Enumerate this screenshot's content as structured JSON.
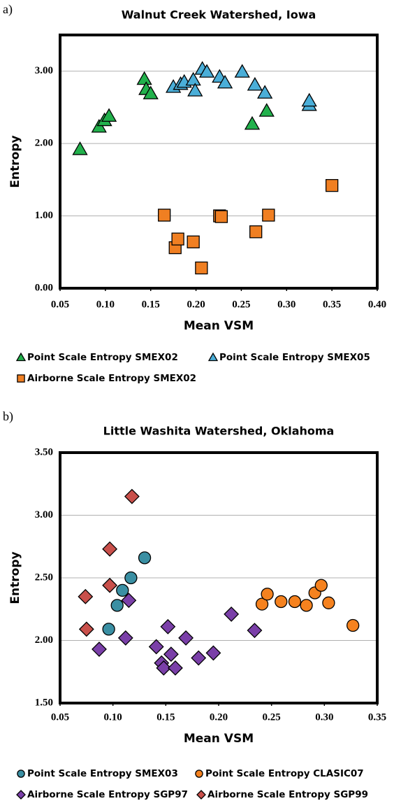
{
  "chart_data": [
    {
      "type": "scatter",
      "panel_label": "a)",
      "title": "Walnut Creek Watershed, Iowa",
      "x_label": "Mean VSM",
      "y_label": "Entropy",
      "xlim": [
        0.05,
        0.4
      ],
      "ylim": [
        0,
        3.5
      ],
      "xticks": [
        0.05,
        {
          "value": 0.1,
          "label": "0.10"
        },
        0.15,
        {
          "value": 0.2,
          "label": "0.20"
        },
        0.25,
        {
          "value": 0.3,
          "label": "0.30"
        },
        0.35,
        {
          "value": 0.4,
          "label": "0.40"
        }
      ],
      "yticks": [
        {
          "value": 0,
          "label": "0.00"
        },
        {
          "value": 1,
          "label": "1.00"
        },
        {
          "value": 2,
          "label": "2.00"
        },
        {
          "value": 3,
          "label": "3.00"
        }
      ],
      "grid": true,
      "series": [
        {
          "name": "Point Scale Entropy SMEX02",
          "color": "#22b14c",
          "marker": "triangle",
          "x": [
            0.072,
            0.093,
            0.099,
            0.104,
            0.143,
            0.145,
            0.15,
            0.262,
            0.278
          ],
          "values": [
            1.92,
            2.23,
            2.32,
            2.38,
            2.89,
            2.75,
            2.69,
            2.27,
            2.45
          ]
        },
        {
          "name": "Point Scale Entropy SMEX05",
          "color": "#4aaed8",
          "marker": "triangle",
          "x": [
            0.175,
            0.183,
            0.187,
            0.197,
            0.199,
            0.207,
            0.212,
            0.226,
            0.232,
            0.251,
            0.265,
            0.276,
            0.325,
            0.325
          ],
          "values": [
            2.78,
            2.82,
            2.85,
            2.88,
            2.73,
            3.03,
            2.99,
            2.92,
            2.84,
            2.99,
            2.81,
            2.7,
            2.53,
            2.59
          ]
        },
        {
          "name": "Airborne Scale Entropy SMEX02",
          "color": "#f07f22",
          "marker": "square",
          "x": [
            0.165,
            0.177,
            0.18,
            0.197,
            0.206,
            0.226,
            0.228,
            0.266,
            0.28,
            0.35
          ],
          "values": [
            1.01,
            0.56,
            0.68,
            0.64,
            0.28,
            1.0,
            0.99,
            0.78,
            1.01,
            1.42
          ]
        }
      ]
    },
    {
      "type": "scatter",
      "panel_label": "b)",
      "title": "Little Washita Watershed, Oklahoma",
      "x_label": "Mean VSM",
      "y_label": "Entropy",
      "xlim": [
        0.05,
        0.35
      ],
      "ylim": [
        1.5,
        3.5
      ],
      "xticks": [
        0.05,
        {
          "value": 0.1,
          "label": "0.10"
        },
        0.15,
        {
          "value": 0.2,
          "label": "0.20"
        },
        0.25,
        {
          "value": 0.3,
          "label": "0.30"
        },
        0.35
      ],
      "yticks": [
        {
          "value": 1.5,
          "label": "1.50"
        },
        {
          "value": 2,
          "label": "2.00"
        },
        {
          "value": 2.5,
          "label": "2.50"
        },
        {
          "value": 3,
          "label": "3.00"
        },
        {
          "value": 3.5,
          "label": "3.50"
        }
      ],
      "grid": true,
      "series": [
        {
          "name": "Point Scale Entropy SMEX03",
          "color": "#3a8fa3",
          "marker": "circle",
          "x": [
            0.096,
            0.104,
            0.109,
            0.117,
            0.13
          ],
          "values": [
            2.09,
            2.28,
            2.4,
            2.5,
            2.66
          ]
        },
        {
          "name": "Point Scale Entropy CLASIC07",
          "color": "#f5821f",
          "marker": "circle",
          "x": [
            0.241,
            0.246,
            0.259,
            0.272,
            0.283,
            0.291,
            0.297,
            0.304,
            0.327
          ],
          "values": [
            2.29,
            2.37,
            2.31,
            2.31,
            2.28,
            2.38,
            2.44,
            2.3,
            2.12
          ]
        },
        {
          "name": "Airborne Scale Entropy SGP97",
          "color": "#7a3fa8",
          "marker": "diamond",
          "x": [
            0.087,
            0.112,
            0.115,
            0.141,
            0.146,
            0.148,
            0.152,
            0.155,
            0.159,
            0.169,
            0.181,
            0.195,
            0.212,
            0.234
          ],
          "values": [
            1.93,
            2.02,
            2.32,
            1.95,
            1.82,
            1.78,
            2.11,
            1.89,
            1.78,
            2.02,
            1.86,
            1.9,
            2.21,
            2.08
          ]
        },
        {
          "name": "Airborne Scale Entropy SGP99",
          "color": "#c9504b",
          "marker": "diamond",
          "x": [
            0.075,
            0.074,
            0.097,
            0.097,
            0.118
          ],
          "values": [
            2.09,
            2.35,
            2.44,
            2.73,
            3.15
          ]
        }
      ]
    }
  ]
}
